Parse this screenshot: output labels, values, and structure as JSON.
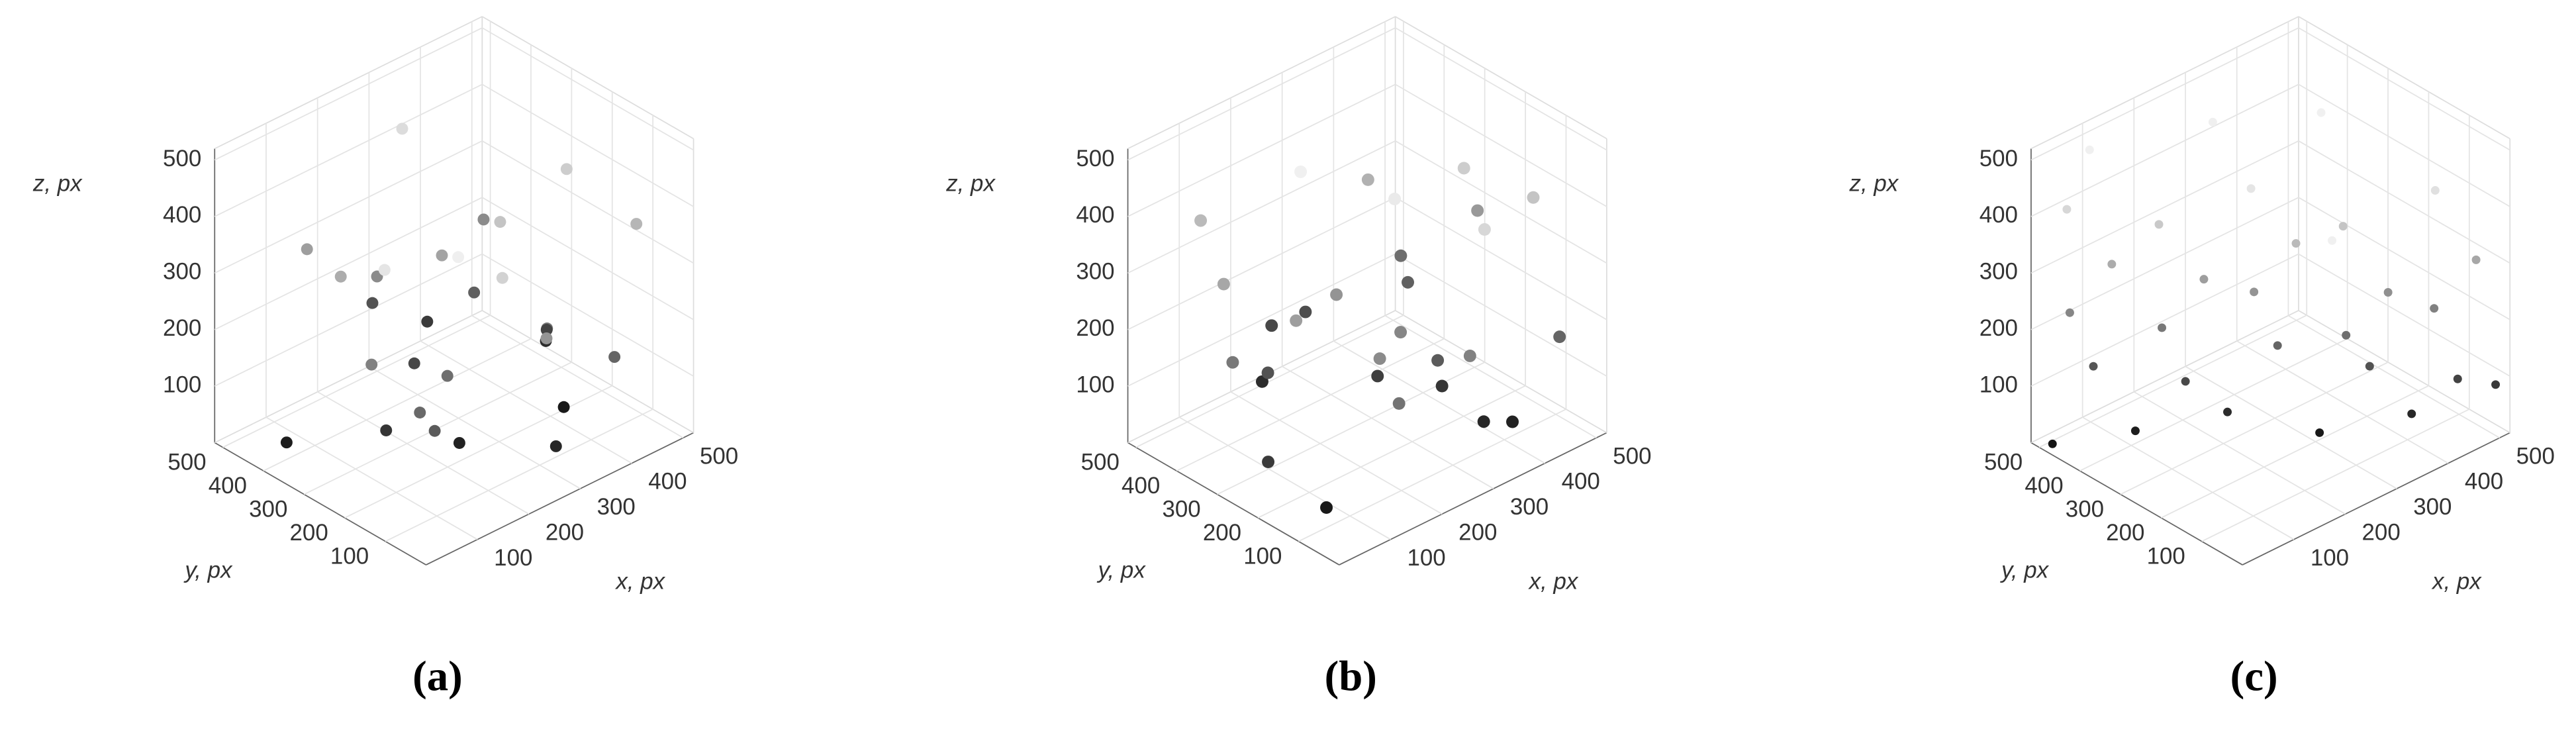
{
  "chart_data": [
    {
      "type": "scatter3d",
      "title": "(a)",
      "xlabel": "x, px",
      "ylabel": "y, px",
      "zlabel": "z, px",
      "xlim": [
        0,
        520
      ],
      "ylim": [
        0,
        520
      ],
      "zlim": [
        0,
        520
      ],
      "xticks": [
        100,
        200,
        300,
        400,
        500
      ],
      "yticks": [
        100,
        200,
        300,
        400,
        500
      ],
      "zticks": [
        100,
        200,
        300,
        400,
        500
      ],
      "grid": true,
      "series": [
        {
          "x": [
            45,
            120,
            300,
            410,
            230,
            88,
            350,
            470,
            160,
            275,
            390,
            60,
            205,
            330,
            440,
            140,
            250,
            480,
            95,
            310,
            180,
            420,
            30,
            260,
            370,
            110,
            215,
            455,
            325,
            75
          ],
          "y": [
            400,
            250,
            60,
            180,
            320,
            90,
            440,
            300,
            150,
            480,
            30,
            210,
            380,
            120,
            260,
            470,
            20,
            90,
            330,
            210,
            40,
            390,
            140,
            290,
            350,
            60,
            190,
            230,
            470,
            110
          ],
          "z": [
            30,
            80,
            50,
            20,
            120,
            160,
            90,
            60,
            200,
            140,
            180,
            240,
            260,
            220,
            110,
            300,
            280,
            350,
            330,
            380,
            410,
            260,
            450,
            310,
            170,
            470,
            40,
            400,
            430,
            190
          ]
        }
      ]
    },
    {
      "type": "scatter3d",
      "title": "(b)",
      "xlabel": "x, px",
      "ylabel": "y, px",
      "zlabel": "z, px",
      "xlim": [
        0,
        520
      ],
      "ylim": [
        0,
        520
      ],
      "zlim": [
        0,
        520
      ],
      "xticks": [
        100,
        200,
        300,
        400,
        500
      ],
      "yticks": [
        100,
        200,
        300,
        400,
        500
      ],
      "zticks": [
        100,
        200,
        300,
        400,
        500
      ],
      "grid": true,
      "series": [
        {
          "x": [
            70,
            190,
            280,
            400,
            130,
            350,
            460,
            240,
            30,
            310,
            150,
            420,
            90,
            270,
            380,
            200,
            480,
            60,
            330,
            110,
            250,
            440,
            170,
            360,
            20,
            290,
            410,
            140,
            230,
            490
          ],
          "y": [
            120,
            430,
            260,
            80,
            340,
            190,
            40,
            470,
            300,
            150,
            90,
            380,
            220,
            20,
            410,
            260,
            130,
            360,
            60,
            480,
            180,
            250,
            310,
            100,
            200,
            450,
            350,
            30,
            140,
            280
          ],
          "z": [
            20,
            60,
            100,
            40,
            140,
            80,
            180,
            120,
            220,
            160,
            260,
            200,
            300,
            240,
            340,
            280,
            380,
            320,
            420,
            360,
            460,
            400,
            490,
            50,
            90,
            130,
            170,
            210,
            250,
            290
          ]
        }
      ]
    },
    {
      "type": "scatter3d",
      "title": "(c)",
      "xlabel": "x, px",
      "ylabel": "y, px",
      "zlabel": "z, px",
      "xlim": [
        0,
        520
      ],
      "ylim": [
        0,
        520
      ],
      "zlim": [
        0,
        520
      ],
      "xticks": [
        100,
        200,
        300,
        400,
        500
      ],
      "yticks": [
        100,
        200,
        300,
        400,
        500
      ],
      "zticks": [
        100,
        200,
        300,
        400,
        500
      ],
      "grid": true,
      "series": [
        {
          "x": [
            10,
            100,
            200,
            300,
            400,
            500,
            50,
            150,
            250,
            350,
            450,
            20,
            120,
            220,
            320,
            420,
            70,
            170,
            270,
            370,
            470,
            30,
            130,
            230,
            330,
            430,
            90,
            190,
            290,
            390
          ],
          "y": [
            480,
            390,
            290,
            190,
            90,
            10,
            430,
            330,
            230,
            130,
            40,
            450,
            350,
            250,
            150,
            60,
            410,
            310,
            210,
            110,
            20,
            470,
            370,
            270,
            170,
            70,
            490,
            20,
            440,
            300
          ],
          "z": [
            10,
            30,
            60,
            20,
            50,
            90,
            150,
            120,
            180,
            140,
            110,
            250,
            220,
            280,
            200,
            240,
            330,
            300,
            360,
            270,
            320,
            420,
            390,
            450,
            380,
            440,
            490,
            480,
            470,
            500
          ]
        }
      ]
    }
  ]
}
